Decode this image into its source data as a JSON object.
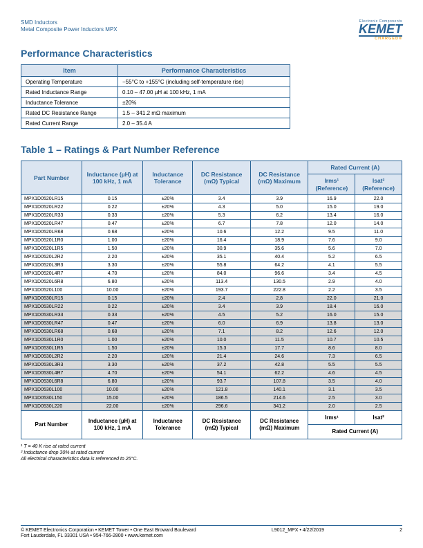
{
  "header": {
    "line1": "SMD Inductors",
    "line2": "Metal Composite Power Inductors MPX",
    "logo_sub": "Electronic Components",
    "logo_main": "KEMET",
    "logo_charged": "CHARGED®"
  },
  "section1_title": "Performance Characteristics",
  "perf_table": {
    "headers": [
      "Item",
      "Performance Characteristics"
    ],
    "rows": [
      [
        "Operating Temperature",
        "−55°C to +155°C (including self-temperature rise)"
      ],
      [
        "Rated Inductance Range",
        "0.10 – 47.00 µH at 100 kHz, 1 mA"
      ],
      [
        "Inductance Tolerance",
        "±20%"
      ],
      [
        "Rated DC Resistance Range",
        "1.5 – 341.2 mΩ maximum"
      ],
      [
        "Rated Current Range",
        "2.0 – 35.4 A"
      ]
    ]
  },
  "section2_title": "Table 1 – Ratings & Part Number Reference",
  "ratings_table": {
    "head_rated_current": "Rated Current (A)",
    "head_part": "Part Number",
    "head_ind": "Inductance (µH) at 100 kHz, 1 mA",
    "head_tol": "Inductance Tolerance",
    "head_dcr_typ": "DC Resistance (mΩ) Typical",
    "head_dcr_max": "DC Resistance (mΩ) Maximum",
    "head_irms": "Irms¹ (Reference)",
    "head_isat": "Isat² (Reference)",
    "foot_irms": "Irms¹",
    "foot_isat": "Isat²",
    "foot_rated": "Rated Current (A)",
    "rows": [
      {
        "s": false,
        "c": [
          "MPX1D0520LR15",
          "0.15",
          "±20%",
          "3.4",
          "3.9",
          "16.9",
          "22.0"
        ]
      },
      {
        "s": false,
        "c": [
          "MPX1D0520LR22",
          "0.22",
          "±20%",
          "4.3",
          "5.0",
          "15.0",
          "19.0"
        ]
      },
      {
        "s": false,
        "c": [
          "MPX1D0520LR33",
          "0.33",
          "±20%",
          "5.3",
          "6.2",
          "13.4",
          "16.0"
        ]
      },
      {
        "s": false,
        "c": [
          "MPX1D0520LR47",
          "0.47",
          "±20%",
          "6.7",
          "7.8",
          "12.0",
          "14.0"
        ]
      },
      {
        "s": false,
        "c": [
          "MPX1D0520LR68",
          "0.68",
          "±20%",
          "10.6",
          "12.2",
          "9.5",
          "11.0"
        ]
      },
      {
        "s": false,
        "c": [
          "MPX1D0520L1R0",
          "1.00",
          "±20%",
          "16.4",
          "18.9",
          "7.6",
          "9.0"
        ]
      },
      {
        "s": false,
        "c": [
          "MPX1D0520L1R5",
          "1.50",
          "±20%",
          "30.9",
          "35.6",
          "5.6",
          "7.0"
        ]
      },
      {
        "s": false,
        "c": [
          "MPX1D0520L2R2",
          "2.20",
          "±20%",
          "35.1",
          "40.4",
          "5.2",
          "6.5"
        ]
      },
      {
        "s": false,
        "c": [
          "MPX1D0520L3R3",
          "3.30",
          "±20%",
          "55.8",
          "64.2",
          "4.1",
          "5.5"
        ]
      },
      {
        "s": false,
        "c": [
          "MPX1D0520L4R7",
          "4.70",
          "±20%",
          "84.0",
          "96.6",
          "3.4",
          "4.5"
        ]
      },
      {
        "s": false,
        "c": [
          "MPX1D0520L6R8",
          "6.80",
          "±20%",
          "113.4",
          "130.5",
          "2.9",
          "4.0"
        ]
      },
      {
        "s": false,
        "c": [
          "MPX1D0520L100",
          "10.00",
          "±20%",
          "193.7",
          "222.8",
          "2.2",
          "3.5"
        ]
      },
      {
        "s": true,
        "c": [
          "MPX1D0530LR15",
          "0.15",
          "±20%",
          "2.4",
          "2.8",
          "22.0",
          "21.0"
        ]
      },
      {
        "s": true,
        "c": [
          "MPX1D0530LR22",
          "0.22",
          "±20%",
          "3.4",
          "3.9",
          "18.4",
          "16.0"
        ]
      },
      {
        "s": true,
        "c": [
          "MPX1D0530LR33",
          "0.33",
          "±20%",
          "4.5",
          "5.2",
          "16.0",
          "15.0"
        ]
      },
      {
        "s": true,
        "c": [
          "MPX1D0530LR47",
          "0.47",
          "±20%",
          "6.0",
          "6.9",
          "13.8",
          "13.0"
        ]
      },
      {
        "s": true,
        "c": [
          "MPX1D0530LR68",
          "0.68",
          "±20%",
          "7.1",
          "8.2",
          "12.6",
          "12.0"
        ]
      },
      {
        "s": true,
        "c": [
          "MPX1D0530L1R0",
          "1.00",
          "±20%",
          "10.0",
          "11.5",
          "10.7",
          "10.5"
        ]
      },
      {
        "s": true,
        "c": [
          "MPX1D0530L1R5",
          "1.50",
          "±20%",
          "15.3",
          "17.7",
          "8.6",
          "8.0"
        ]
      },
      {
        "s": true,
        "c": [
          "MPX1D0530L2R2",
          "2.20",
          "±20%",
          "21.4",
          "24.6",
          "7.3",
          "6.5"
        ]
      },
      {
        "s": true,
        "c": [
          "MPX1D0530L3R3",
          "3.30",
          "±20%",
          "37.2",
          "42.8",
          "5.5",
          "5.5"
        ]
      },
      {
        "s": true,
        "c": [
          "MPX1D0530L4R7",
          "4.70",
          "±20%",
          "54.1",
          "62.2",
          "4.6",
          "4.5"
        ]
      },
      {
        "s": true,
        "c": [
          "MPX1D0530L6R8",
          "6.80",
          "±20%",
          "93.7",
          "107.8",
          "3.5",
          "4.0"
        ]
      },
      {
        "s": true,
        "c": [
          "MPX1D0530L100",
          "10.00",
          "±20%",
          "121.8",
          "140.1",
          "3.1",
          "3.5"
        ]
      },
      {
        "s": true,
        "c": [
          "MPX1D0530L150",
          "15.00",
          "±20%",
          "186.5",
          "214.6",
          "2.5",
          "3.0"
        ]
      },
      {
        "s": true,
        "c": [
          "MPX1D0530L220",
          "22.00",
          "±20%",
          "296.6",
          "341.2",
          "2.0",
          "2.5"
        ]
      }
    ]
  },
  "footnotes": {
    "f1": "¹ T = 40 K rise at rated current",
    "f2": "² Inductance drop 30% at rated current",
    "f3": "All electrical characteristics data is referenced to 25°C."
  },
  "footer": {
    "left1": "© KEMET Electronics Corporation • KEMET Tower • One East Broward Boulevard",
    "left2": "Fort Lauderdale, FL 33301 USA • 954-766-2800 • www.kemet.com",
    "right": "L9012_MPX • 4/22/2019",
    "page": "2"
  }
}
